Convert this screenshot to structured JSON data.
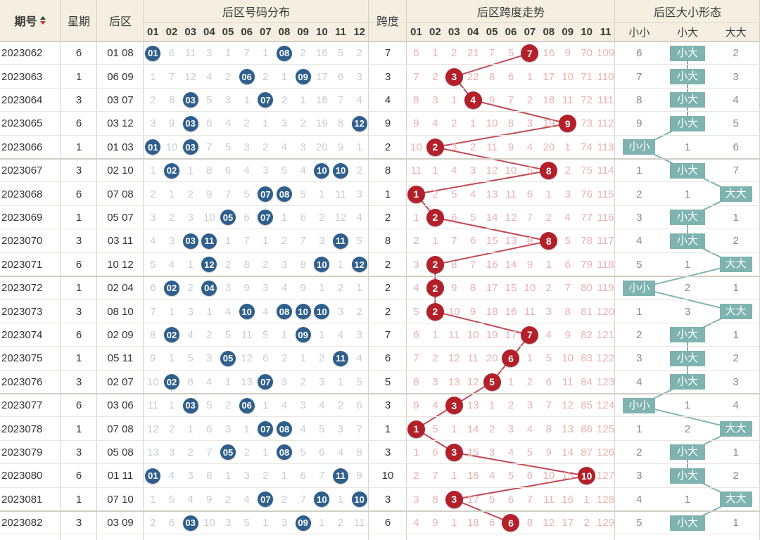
{
  "headers": {
    "issue": "期号",
    "sort_icon": "sort-icon",
    "weekday": "星期",
    "back": "后区",
    "distribution": "后区号码分布",
    "span": "跨度",
    "span_trend": "后区跨度走势",
    "size_form": "后区大小形态",
    "dist_nums": [
      "01",
      "02",
      "03",
      "04",
      "05",
      "06",
      "07",
      "08",
      "09",
      "10",
      "11",
      "12"
    ],
    "span_nums": [
      "01",
      "02",
      "03",
      "04",
      "05",
      "06",
      "07",
      "08",
      "09",
      "10",
      "11"
    ],
    "size_cols": [
      "小小",
      "小大",
      "大大"
    ]
  },
  "colors": {
    "header_bg": "#f4efe1",
    "blue_ball": "#2f5f8c",
    "red_ball": "#b3202a",
    "badge": "#7fb3b0",
    "red_line": "#c24a55",
    "teal_line": "#7fb3b0"
  },
  "chart_data": {
    "type": "table",
    "title": "后区跨度走势",
    "rows": [
      {
        "issue": "2023062",
        "weekday": "6",
        "back": "01 08",
        "dist": [
          "01",
          "6",
          "11",
          "3",
          "1",
          "7",
          "1",
          "08",
          "2",
          "16",
          "5",
          "2"
        ],
        "span": "7",
        "span_trend": [
          "6",
          "1",
          "2",
          "21",
          "7",
          "5",
          "7",
          "16",
          "9",
          "70",
          "109"
        ],
        "size": [
          "6",
          "小大",
          "2"
        ]
      },
      {
        "issue": "2023063",
        "weekday": "1",
        "back": "06 09",
        "dist": [
          "1",
          "7",
          "12",
          "4",
          "2",
          "06",
          "2",
          "1",
          "09",
          "17",
          "6",
          "3"
        ],
        "span": "3",
        "span_trend": [
          "7",
          "2",
          "3",
          "22",
          "8",
          "6",
          "1",
          "17",
          "10",
          "71",
          "110"
        ],
        "size": [
          "7",
          "小大",
          "3"
        ]
      },
      {
        "issue": "2023064",
        "weekday": "3",
        "back": "03 07",
        "dist": [
          "2",
          "8",
          "03",
          "5",
          "3",
          "1",
          "07",
          "2",
          "1",
          "18",
          "7",
          "4"
        ],
        "span": "4",
        "span_trend": [
          "8",
          "3",
          "1",
          "4",
          "9",
          "7",
          "2",
          "18",
          "11",
          "72",
          "111"
        ],
        "size": [
          "8",
          "小大",
          "4"
        ]
      },
      {
        "issue": "2023065",
        "weekday": "6",
        "back": "03 12",
        "dist": [
          "3",
          "9",
          "03",
          "6",
          "4",
          "2",
          "1",
          "3",
          "2",
          "19",
          "8",
          "12"
        ],
        "span": "9",
        "span_trend": [
          "9",
          "4",
          "2",
          "1",
          "10",
          "8",
          "3",
          "19",
          "9",
          "73",
          "112"
        ],
        "size": [
          "9",
          "小大",
          "5"
        ]
      },
      {
        "issue": "2023066",
        "weekday": "1",
        "back": "01 03",
        "dist": [
          "01",
          "10",
          "03",
          "7",
          "5",
          "3",
          "2",
          "4",
          "3",
          "20",
          "9",
          "1"
        ],
        "span": "2",
        "span_trend": [
          "10",
          "2",
          "3",
          "2",
          "11",
          "9",
          "4",
          "20",
          "1",
          "74",
          "113"
        ],
        "size": [
          "小小",
          "1",
          "6"
        ]
      },
      {
        "issue": "2023067",
        "weekday": "3",
        "back": "02 10",
        "dist": [
          "1",
          "02",
          "1",
          "8",
          "6",
          "4",
          "3",
          "5",
          "4",
          "10",
          "10",
          "2"
        ],
        "span": "8",
        "span_trend": [
          "11",
          "1",
          "4",
          "3",
          "12",
          "10",
          "5",
          "8",
          "2",
          "75",
          "114"
        ],
        "size": [
          "1",
          "小大",
          "7"
        ]
      },
      {
        "issue": "2023068",
        "weekday": "6",
        "back": "07 08",
        "dist": [
          "2",
          "1",
          "2",
          "9",
          "7",
          "5",
          "07",
          "08",
          "5",
          "1",
          "11",
          "3"
        ],
        "span": "1",
        "span_trend": [
          "1",
          "2",
          "5",
          "4",
          "13",
          "11",
          "6",
          "1",
          "3",
          "76",
          "115"
        ],
        "size": [
          "2",
          "1",
          "大大"
        ]
      },
      {
        "issue": "2023069",
        "weekday": "1",
        "back": "05 07",
        "dist": [
          "3",
          "2",
          "3",
          "10",
          "05",
          "6",
          "07",
          "1",
          "6",
          "2",
          "12",
          "4"
        ],
        "span": "2",
        "span_trend": [
          "1",
          "2",
          "6",
          "5",
          "14",
          "12",
          "7",
          "2",
          "4",
          "77",
          "116"
        ],
        "size": [
          "3",
          "小大",
          "1"
        ]
      },
      {
        "issue": "2023070",
        "weekday": "3",
        "back": "03 11",
        "dist": [
          "4",
          "3",
          "03",
          "11",
          "1",
          "7",
          "1",
          "2",
          "7",
          "3",
          "11",
          "5"
        ],
        "span": "8",
        "span_trend": [
          "2",
          "1",
          "7",
          "6",
          "15",
          "13",
          "8",
          "8",
          "5",
          "78",
          "117"
        ],
        "size": [
          "4",
          "小大",
          "2"
        ]
      },
      {
        "issue": "2023071",
        "weekday": "6",
        "back": "10 12",
        "dist": [
          "5",
          "4",
          "1",
          "12",
          "2",
          "8",
          "2",
          "3",
          "8",
          "10",
          "1",
          "12"
        ],
        "span": "2",
        "span_trend": [
          "3",
          "2",
          "8",
          "7",
          "16",
          "14",
          "9",
          "1",
          "6",
          "79",
          "118"
        ],
        "size": [
          "5",
          "1",
          "大大"
        ]
      },
      {
        "issue": "2023072",
        "weekday": "1",
        "back": "02 04",
        "dist": [
          "6",
          "02",
          "2",
          "04",
          "3",
          "9",
          "3",
          "4",
          "9",
          "1",
          "2",
          "1"
        ],
        "span": "2",
        "span_trend": [
          "4",
          "2",
          "9",
          "8",
          "17",
          "15",
          "10",
          "2",
          "7",
          "80",
          "119"
        ],
        "size": [
          "小小",
          "2",
          "1"
        ]
      },
      {
        "issue": "2023073",
        "weekday": "3",
        "back": "08 10",
        "dist": [
          "7",
          "1",
          "3",
          "1",
          "4",
          "10",
          "4",
          "08",
          "10",
          "10",
          "3",
          "2"
        ],
        "span": "2",
        "span_trend": [
          "5",
          "2",
          "10",
          "9",
          "18",
          "16",
          "11",
          "3",
          "8",
          "81",
          "120"
        ],
        "size": [
          "1",
          "3",
          "大大"
        ]
      },
      {
        "issue": "2023074",
        "weekday": "6",
        "back": "02 09",
        "dist": [
          "8",
          "02",
          "4",
          "2",
          "5",
          "11",
          "5",
          "1",
          "09",
          "1",
          "4",
          "3"
        ],
        "span": "7",
        "span_trend": [
          "6",
          "1",
          "11",
          "10",
          "19",
          "17",
          "7",
          "4",
          "9",
          "82",
          "121"
        ],
        "size": [
          "2",
          "小大",
          "1"
        ]
      },
      {
        "issue": "2023075",
        "weekday": "1",
        "back": "05 11",
        "dist": [
          "9",
          "1",
          "5",
          "3",
          "05",
          "12",
          "6",
          "2",
          "1",
          "2",
          "11",
          "4"
        ],
        "span": "6",
        "span_trend": [
          "7",
          "2",
          "12",
          "11",
          "20",
          "6",
          "1",
          "5",
          "10",
          "83",
          "122"
        ],
        "size": [
          "3",
          "小大",
          "2"
        ]
      },
      {
        "issue": "2023076",
        "weekday": "3",
        "back": "02 07",
        "dist": [
          "10",
          "02",
          "6",
          "4",
          "1",
          "13",
          "07",
          "3",
          "2",
          "3",
          "1",
          "5"
        ],
        "span": "5",
        "span_trend": [
          "8",
          "3",
          "13",
          "12",
          "5",
          "1",
          "2",
          "6",
          "11",
          "84",
          "123"
        ],
        "size": [
          "4",
          "小大",
          "3"
        ]
      },
      {
        "issue": "2023077",
        "weekday": "6",
        "back": "03 06",
        "dist": [
          "11",
          "1",
          "03",
          "5",
          "2",
          "06",
          "1",
          "4",
          "3",
          "4",
          "2",
          "6"
        ],
        "span": "3",
        "span_trend": [
          "9",
          "4",
          "3",
          "13",
          "1",
          "2",
          "3",
          "7",
          "12",
          "85",
          "124"
        ],
        "size": [
          "小小",
          "1",
          "4"
        ]
      },
      {
        "issue": "2023078",
        "weekday": "1",
        "back": "07 08",
        "dist": [
          "12",
          "2",
          "1",
          "6",
          "3",
          "1",
          "07",
          "08",
          "4",
          "5",
          "3",
          "7"
        ],
        "span": "1",
        "span_trend": [
          "1",
          "5",
          "1",
          "14",
          "2",
          "3",
          "4",
          "8",
          "13",
          "86",
          "125"
        ],
        "size": [
          "1",
          "2",
          "大大"
        ]
      },
      {
        "issue": "2023079",
        "weekday": "3",
        "back": "05 08",
        "dist": [
          "13",
          "3",
          "2",
          "7",
          "05",
          "2",
          "1",
          "08",
          "5",
          "6",
          "4",
          "8"
        ],
        "span": "3",
        "span_trend": [
          "1",
          "6",
          "3",
          "15",
          "3",
          "4",
          "5",
          "9",
          "14",
          "87",
          "126"
        ],
        "size": [
          "2",
          "小大",
          "1"
        ]
      },
      {
        "issue": "2023080",
        "weekday": "6",
        "back": "01 11",
        "dist": [
          "01",
          "4",
          "3",
          "8",
          "1",
          "3",
          "2",
          "1",
          "6",
          "7",
          "11",
          "9"
        ],
        "span": "10",
        "span_trend": [
          "2",
          "7",
          "1",
          "16",
          "4",
          "5",
          "6",
          "10",
          "15",
          "10",
          "127"
        ],
        "size": [
          "3",
          "小大",
          "2"
        ]
      },
      {
        "issue": "2023081",
        "weekday": "1",
        "back": "07 10",
        "dist": [
          "1",
          "5",
          "4",
          "9",
          "2",
          "4",
          "07",
          "2",
          "7",
          "10",
          "1",
          "10"
        ],
        "span": "3",
        "span_trend": [
          "3",
          "8",
          "3",
          "17",
          "5",
          "6",
          "7",
          "11",
          "16",
          "1",
          "128"
        ],
        "size": [
          "4",
          "1",
          "大大"
        ]
      },
      {
        "issue": "2023082",
        "weekday": "3",
        "back": "03 09",
        "dist": [
          "2",
          "6",
          "03",
          "10",
          "3",
          "5",
          "1",
          "3",
          "09",
          "1",
          "2",
          "11"
        ],
        "span": "6",
        "span_trend": [
          "4",
          "9",
          "1",
          "18",
          "6",
          "6",
          "8",
          "12",
          "17",
          "2",
          "129"
        ],
        "size": [
          "5",
          "小大",
          "1"
        ]
      }
    ]
  }
}
